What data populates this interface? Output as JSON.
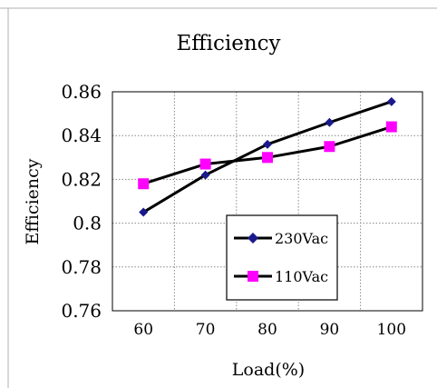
{
  "chart_data": {
    "type": "line",
    "title": "Efficiency",
    "xlabel": "Load(%)",
    "ylabel": "Efficiency",
    "x": [
      60,
      70,
      80,
      90,
      100
    ],
    "x_tick_labels": [
      "60",
      "70",
      "80",
      "90",
      "100"
    ],
    "y_tick_labels": [
      "0.76",
      "0.78",
      "0.8",
      "0.82",
      "0.84",
      "0.86"
    ],
    "xlim": [
      55,
      105
    ],
    "ylim": [
      0.76,
      0.86
    ],
    "y_ticks": [
      0.76,
      0.78,
      0.8,
      0.82,
      0.84,
      0.86
    ],
    "grid": true,
    "legend_position": "bottom-right",
    "series": [
      {
        "name": "230Vac",
        "values": [
          0.805,
          0.822,
          0.836,
          0.846,
          0.8555
        ],
        "marker": "diamond",
        "marker_color": "#1a1a8c",
        "line_color": "#000000"
      },
      {
        "name": "110Vac",
        "values": [
          0.818,
          0.827,
          0.83,
          0.835,
          0.844
        ],
        "marker": "square",
        "marker_color": "#ff00ff",
        "line_color": "#000000"
      }
    ]
  }
}
